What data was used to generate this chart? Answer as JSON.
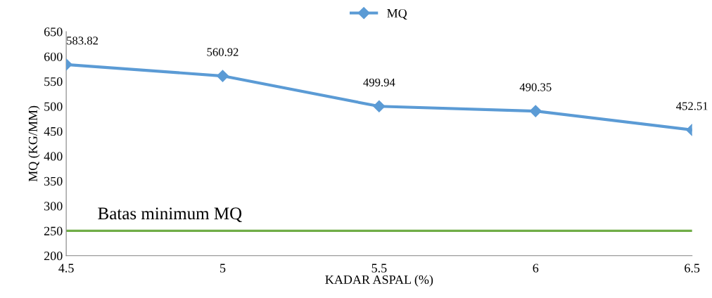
{
  "chart_data": {
    "type": "line",
    "xlabel": "KADAR ASPAL (%)",
    "ylabel": "MQ (KG/MM)",
    "x": [
      4.5,
      5,
      5.5,
      6,
      6.5
    ],
    "series": [
      {
        "name": "MQ",
        "color": "#5b9bd5",
        "values": [
          583.82,
          560.92,
          499.94,
          490.35,
          452.51
        ]
      }
    ],
    "xlim": [
      4.5,
      6.5
    ],
    "xticks": [
      4.5,
      5,
      5.5,
      6,
      6.5
    ],
    "ylim": [
      200,
      650
    ],
    "yticks": [
      200,
      250,
      300,
      350,
      400,
      450,
      500,
      550,
      600,
      650
    ],
    "ref_lines": [
      {
        "axis": "y",
        "value": 250,
        "label": "Batas minimum MQ",
        "color": "#70ad47",
        "line_style": "solid"
      }
    ],
    "data_labels": true,
    "marker": "diamond",
    "line_style": "solid",
    "legend": "top",
    "grid": false
  }
}
